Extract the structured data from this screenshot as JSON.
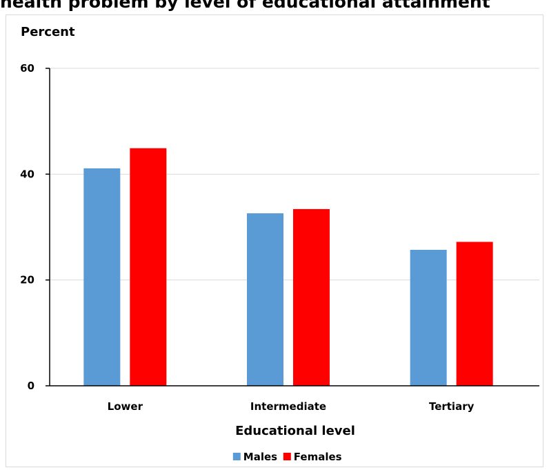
{
  "page_title": "health problem by level of educational attainment",
  "chart_data": {
    "type": "bar",
    "title": "health problem by level of educational attainment",
    "ylabel": "Percent",
    "xlabel": "Educational level",
    "categories": [
      "Lower",
      "Intermediate",
      "Tertiary"
    ],
    "series": [
      {
        "name": "Males",
        "color": "#5b9bd5",
        "values": [
          41.1,
          32.6,
          25.7
        ]
      },
      {
        "name": "Females",
        "color": "#ff0000",
        "values": [
          44.9,
          33.4,
          27.2
        ]
      }
    ],
    "ylim": [
      0,
      60
    ],
    "yticks": [
      0,
      20,
      40,
      60
    ],
    "ytick_labels": [
      "0",
      "20",
      "40",
      "60"
    ],
    "grid": true,
    "legend_position": "bottom"
  }
}
